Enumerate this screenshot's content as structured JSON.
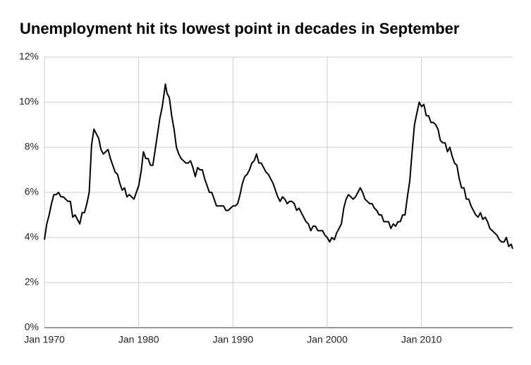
{
  "chart_data": {
    "type": "line",
    "title": "Unemployment hit its lowest point in decades in September",
    "x": [
      "1970-01",
      "1970-04",
      "1970-07",
      "1970-10",
      "1971-01",
      "1971-04",
      "1971-07",
      "1971-10",
      "1972-01",
      "1972-04",
      "1972-07",
      "1972-10",
      "1973-01",
      "1973-04",
      "1973-07",
      "1973-10",
      "1974-01",
      "1974-04",
      "1974-07",
      "1974-10",
      "1975-01",
      "1975-04",
      "1975-07",
      "1975-10",
      "1976-01",
      "1976-04",
      "1976-07",
      "1976-10",
      "1977-01",
      "1977-04",
      "1977-07",
      "1977-10",
      "1978-01",
      "1978-04",
      "1978-07",
      "1978-10",
      "1979-01",
      "1979-04",
      "1979-07",
      "1979-10",
      "1980-01",
      "1980-04",
      "1980-07",
      "1980-10",
      "1981-01",
      "1981-04",
      "1981-07",
      "1981-10",
      "1982-01",
      "1982-04",
      "1982-07",
      "1982-11",
      "1983-01",
      "1983-04",
      "1983-07",
      "1983-10",
      "1984-01",
      "1984-04",
      "1984-07",
      "1984-10",
      "1985-01",
      "1985-04",
      "1985-07",
      "1985-10",
      "1986-01",
      "1986-04",
      "1986-07",
      "1986-10",
      "1987-01",
      "1987-04",
      "1987-07",
      "1987-10",
      "1988-01",
      "1988-04",
      "1988-07",
      "1988-10",
      "1989-01",
      "1989-04",
      "1989-07",
      "1989-10",
      "1990-01",
      "1990-04",
      "1990-07",
      "1990-10",
      "1991-01",
      "1991-04",
      "1991-07",
      "1991-10",
      "1992-01",
      "1992-04",
      "1992-07",
      "1992-10",
      "1993-01",
      "1993-04",
      "1993-07",
      "1993-10",
      "1994-01",
      "1994-04",
      "1994-07",
      "1994-10",
      "1995-01",
      "1995-04",
      "1995-07",
      "1995-10",
      "1996-01",
      "1996-04",
      "1996-07",
      "1996-10",
      "1997-01",
      "1997-04",
      "1997-07",
      "1997-10",
      "1998-01",
      "1998-04",
      "1998-07",
      "1998-10",
      "1999-01",
      "1999-04",
      "1999-07",
      "1999-10",
      "2000-01",
      "2000-04",
      "2000-07",
      "2000-10",
      "2001-01",
      "2001-04",
      "2001-07",
      "2001-10",
      "2002-01",
      "2002-04",
      "2002-07",
      "2002-10",
      "2003-01",
      "2003-04",
      "2003-07",
      "2003-10",
      "2004-01",
      "2004-04",
      "2004-07",
      "2004-10",
      "2005-01",
      "2005-04",
      "2005-07",
      "2005-10",
      "2006-01",
      "2006-04",
      "2006-07",
      "2006-10",
      "2007-01",
      "2007-04",
      "2007-07",
      "2007-10",
      "2008-01",
      "2008-04",
      "2008-07",
      "2008-10",
      "2009-01",
      "2009-04",
      "2009-07",
      "2009-10",
      "2010-01",
      "2010-04",
      "2010-07",
      "2010-10",
      "2011-01",
      "2011-04",
      "2011-07",
      "2011-10",
      "2012-01",
      "2012-04",
      "2012-07",
      "2012-10",
      "2013-01",
      "2013-04",
      "2013-07",
      "2013-10",
      "2014-01",
      "2014-04",
      "2014-07",
      "2014-10",
      "2015-01",
      "2015-04",
      "2015-07",
      "2015-10",
      "2016-01",
      "2016-04",
      "2016-07",
      "2016-10",
      "2017-01",
      "2017-04",
      "2017-07",
      "2017-10",
      "2018-01",
      "2018-04",
      "2018-07",
      "2018-10",
      "2019-01",
      "2019-04",
      "2019-07",
      "2019-09"
    ],
    "series": [
      {
        "color": "#000000",
        "values": [
          3.9,
          4.6,
          5.0,
          5.5,
          5.9,
          5.9,
          6.0,
          5.8,
          5.8,
          5.7,
          5.6,
          5.6,
          4.9,
          5.0,
          4.8,
          4.6,
          5.1,
          5.1,
          5.5,
          6.0,
          8.1,
          8.8,
          8.6,
          8.4,
          7.9,
          7.7,
          7.8,
          7.9,
          7.5,
          7.2,
          6.9,
          6.8,
          6.4,
          6.1,
          6.2,
          5.8,
          5.9,
          5.8,
          5.7,
          6.0,
          6.3,
          6.9,
          7.8,
          7.5,
          7.5,
          7.2,
          7.2,
          7.9,
          8.6,
          9.3,
          9.8,
          10.8,
          10.4,
          10.2,
          9.4,
          8.8,
          8.0,
          7.7,
          7.5,
          7.4,
          7.3,
          7.3,
          7.4,
          7.1,
          6.7,
          7.1,
          7.0,
          7.0,
          6.6,
          6.3,
          6.0,
          6.0,
          5.7,
          5.4,
          5.4,
          5.4,
          5.4,
          5.2,
          5.2,
          5.3,
          5.4,
          5.4,
          5.5,
          5.9,
          6.4,
          6.7,
          6.8,
          7.0,
          7.3,
          7.4,
          7.7,
          7.3,
          7.3,
          7.1,
          6.9,
          6.8,
          6.6,
          6.4,
          6.1,
          5.8,
          5.6,
          5.8,
          5.7,
          5.5,
          5.6,
          5.6,
          5.5,
          5.2,
          5.3,
          5.1,
          4.9,
          4.7,
          4.6,
          4.3,
          4.5,
          4.5,
          4.3,
          4.3,
          4.3,
          4.1,
          4.0,
          3.8,
          4.0,
          3.9,
          4.2,
          4.4,
          4.6,
          5.3,
          5.7,
          5.9,
          5.8,
          5.7,
          5.8,
          6.0,
          6.2,
          6.0,
          5.7,
          5.6,
          5.5,
          5.5,
          5.3,
          5.2,
          5.0,
          5.0,
          4.7,
          4.7,
          4.7,
          4.4,
          4.6,
          4.5,
          4.7,
          4.7,
          5.0,
          5.0,
          5.8,
          6.5,
          7.8,
          9.0,
          9.5,
          10.0,
          9.8,
          9.9,
          9.4,
          9.4,
          9.1,
          9.1,
          9.0,
          8.8,
          8.3,
          8.2,
          8.2,
          7.8,
          8.0,
          7.6,
          7.3,
          7.2,
          6.6,
          6.2,
          6.2,
          5.7,
          5.7,
          5.4,
          5.2,
          5.0,
          4.9,
          5.1,
          4.8,
          4.9,
          4.7,
          4.4,
          4.3,
          4.2,
          4.1,
          3.9,
          3.8,
          3.8,
          4.0,
          3.6,
          3.7,
          3.5
        ]
      }
    ],
    "xlim": [
      "1970-01",
      "2019-09"
    ],
    "xticks": [
      {
        "value": "1970-01",
        "label": "Jan 1970"
      },
      {
        "value": "1980-01",
        "label": "Jan 1980"
      },
      {
        "value": "1990-01",
        "label": "Jan 1990"
      },
      {
        "value": "2000-01",
        "label": "Jan 2000"
      },
      {
        "value": "2010-01",
        "label": "Jan 2010"
      }
    ],
    "ylim": [
      0,
      12
    ],
    "yticks": [
      {
        "value": 0,
        "label": "0%"
      },
      {
        "value": 2,
        "label": "2%"
      },
      {
        "value": 4,
        "label": "4%"
      },
      {
        "value": 6,
        "label": "6%"
      },
      {
        "value": 8,
        "label": "8%"
      },
      {
        "value": 10,
        "label": "10%"
      },
      {
        "value": 12,
        "label": "12%"
      }
    ],
    "grid": true
  }
}
